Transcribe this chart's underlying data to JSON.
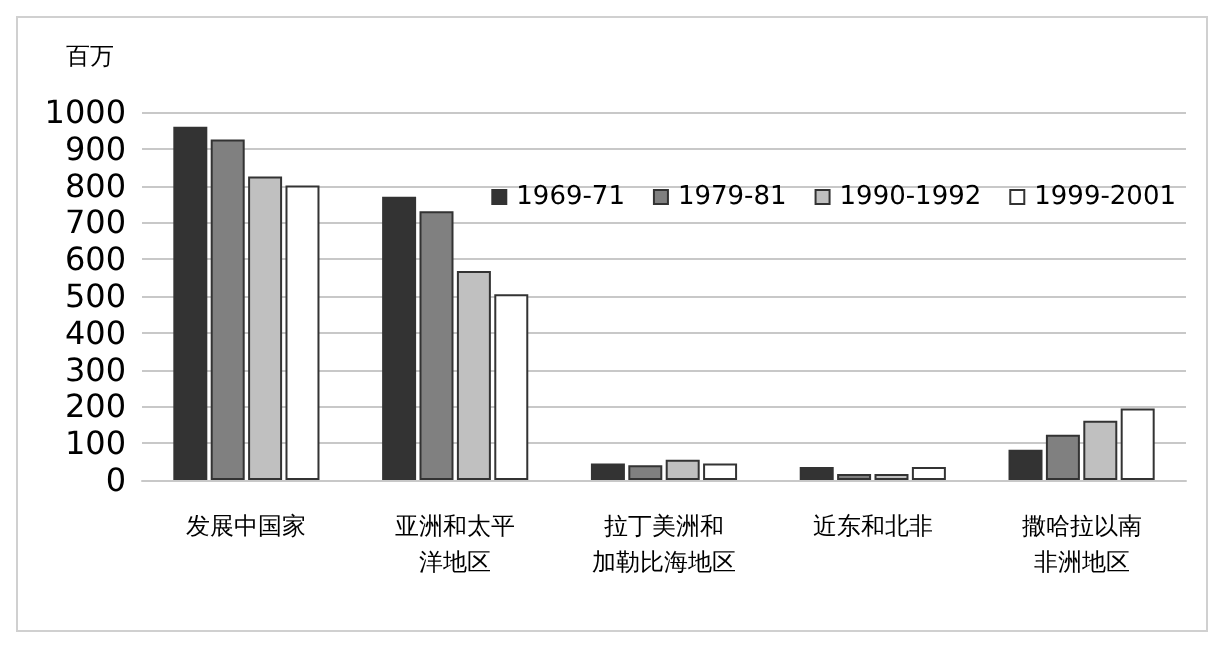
{
  "chart_data": {
    "type": "bar",
    "ylabel": "百万",
    "categories": [
      "发展中国家",
      "亚洲和太平洋地区",
      "拉丁美洲和加勒比海地区",
      "近东和北非",
      "撒哈拉以南非洲地区"
    ],
    "series": [
      {
        "name": "1969-71",
        "color": "#333333",
        "values": [
          960,
          770,
          45,
          35,
          82
        ]
      },
      {
        "name": "1979-81",
        "color": "#808080",
        "values": [
          925,
          730,
          40,
          16,
          123
        ]
      },
      {
        "name": "1990-1992",
        "color": "#c0c0c0",
        "values": [
          825,
          568,
          55,
          16,
          161
        ]
      },
      {
        "name": "1999-2001",
        "color": "#ffffff",
        "values": [
          800,
          505,
          45,
          35,
          194
        ]
      }
    ],
    "ylim": [
      0,
      1000
    ],
    "yticks": [
      0,
      100,
      200,
      300,
      400,
      500,
      600,
      700,
      800,
      900,
      1000
    ],
    "grid": "y",
    "legend": "right"
  }
}
